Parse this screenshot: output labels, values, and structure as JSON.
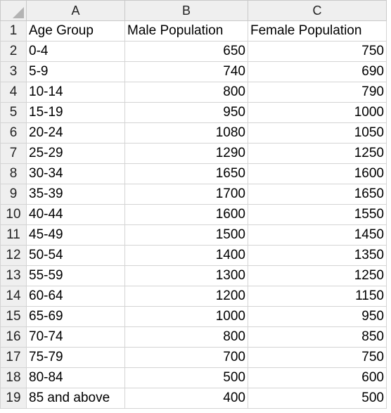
{
  "columns": [
    "A",
    "B",
    "C"
  ],
  "headers": [
    "Age Group",
    "Male Population",
    "Female Population"
  ],
  "rows": [
    {
      "row": "2",
      "age": "0-4",
      "male": "650",
      "female": "750"
    },
    {
      "row": "3",
      "age": "5-9",
      "male": "740",
      "female": "690"
    },
    {
      "row": "4",
      "age": "10-14",
      "male": "800",
      "female": "790"
    },
    {
      "row": "5",
      "age": "15-19",
      "male": "950",
      "female": "1000"
    },
    {
      "row": "6",
      "age": "20-24",
      "male": "1080",
      "female": "1050"
    },
    {
      "row": "7",
      "age": "25-29",
      "male": "1290",
      "female": "1250"
    },
    {
      "row": "8",
      "age": "30-34",
      "male": "1650",
      "female": "1600"
    },
    {
      "row": "9",
      "age": "35-39",
      "male": "1700",
      "female": "1650"
    },
    {
      "row": "10",
      "age": "40-44",
      "male": "1600",
      "female": "1550"
    },
    {
      "row": "11",
      "age": "45-49",
      "male": "1500",
      "female": "1450"
    },
    {
      "row": "12",
      "age": "50-54",
      "male": "1400",
      "female": "1350"
    },
    {
      "row": "13",
      "age": "55-59",
      "male": "1300",
      "female": "1250"
    },
    {
      "row": "14",
      "age": "60-64",
      "male": "1200",
      "female": "1150"
    },
    {
      "row": "15",
      "age": "65-69",
      "male": "1000",
      "female": "950"
    },
    {
      "row": "16",
      "age": "70-74",
      "male": "800",
      "female": "850"
    },
    {
      "row": "17",
      "age": "75-79",
      "male": "700",
      "female": "750"
    },
    {
      "row": "18",
      "age": "80-84",
      "male": "500",
      "female": "600"
    },
    {
      "row": "19",
      "age": "85 and above",
      "male": "400",
      "female": "500"
    }
  ],
  "header_row_number": "1"
}
